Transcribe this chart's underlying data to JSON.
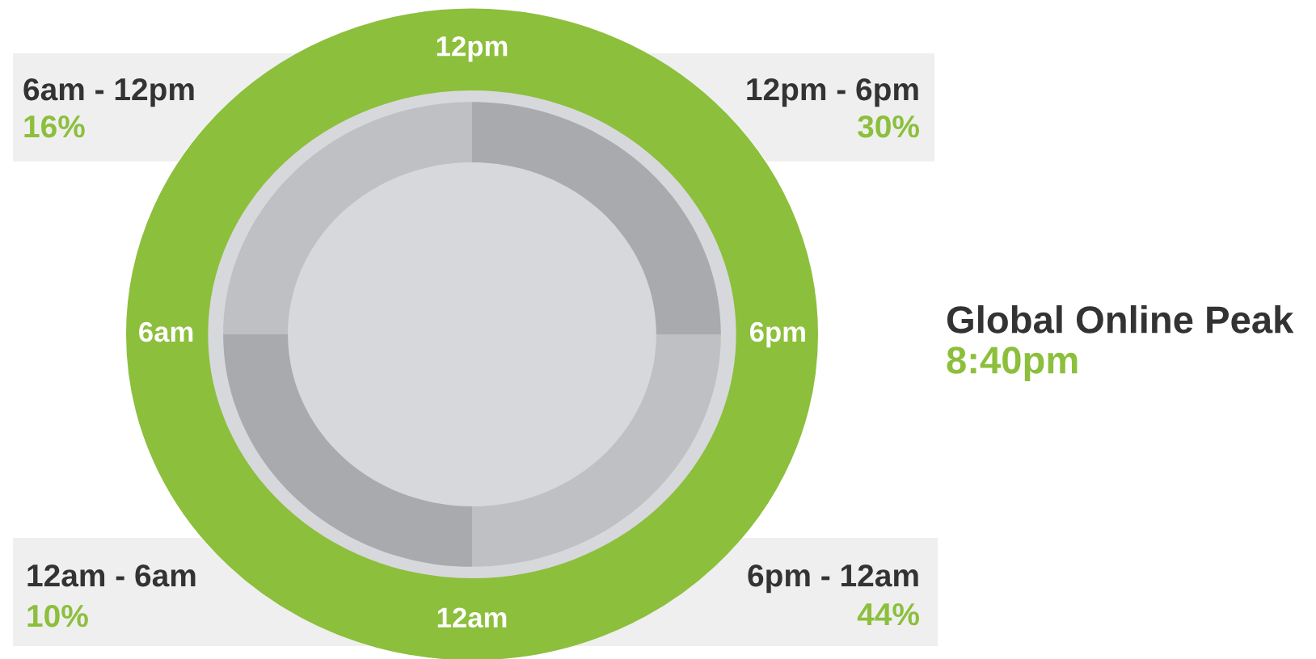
{
  "chart_data": {
    "type": "other",
    "categories": [
      "6am - 12pm",
      "12pm - 6pm",
      "6pm - 12am",
      "12am - 6am"
    ],
    "values": [
      16,
      30,
      44,
      10
    ],
    "value_labels": [
      "16%",
      "30%",
      "44%",
      "10%"
    ],
    "annotations": [
      "12pm",
      "6pm",
      "12am",
      "6am",
      "Global Online Peak",
      "8:40pm"
    ]
  }
}
